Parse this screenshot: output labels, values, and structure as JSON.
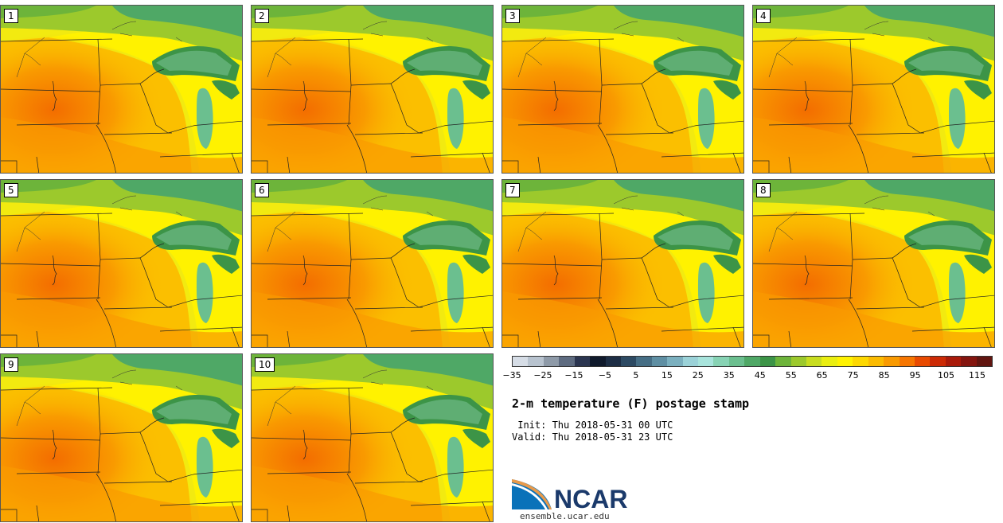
{
  "panels": [
    {
      "label": "1"
    },
    {
      "label": "2"
    },
    {
      "label": "3"
    },
    {
      "label": "4"
    },
    {
      "label": "5"
    },
    {
      "label": "6"
    },
    {
      "label": "7"
    },
    {
      "label": "8"
    },
    {
      "label": "9"
    },
    {
      "label": "10"
    }
  ],
  "colorbar": {
    "colors": [
      "#d6dde6",
      "#b8c3cf",
      "#8e9aa8",
      "#5e6b80",
      "#2b3550",
      "#101a2c",
      "#1d2e45",
      "#2d4a63",
      "#466e85",
      "#5f8fa3",
      "#7bb0bf",
      "#9bd2d8",
      "#a8e4dc",
      "#87d3b4",
      "#6bbf8f",
      "#4fa866",
      "#3c9447",
      "#6db43a",
      "#9cc92c",
      "#c8dd1f",
      "#eaee10",
      "#fff200",
      "#fdd800",
      "#fbbb00",
      "#f99a00",
      "#f67600",
      "#e84a00",
      "#cc2a05",
      "#a91a0a",
      "#84150f",
      "#611510"
    ],
    "tick_labels": [
      "−35",
      "−25",
      "−15",
      "−5",
      "5",
      "15",
      "25",
      "35",
      "45",
      "55",
      "65",
      "75",
      "85",
      "95",
      "105",
      "115"
    ]
  },
  "title": "2-m temperature (F) postage stamp",
  "init": " Init: Thu 2018-05-31 00 UTC",
  "valid": "Valid: Thu 2018-05-31 23 UTC",
  "logo": {
    "text": "NCAR",
    "url": "ensemble.ucar.edu"
  }
}
